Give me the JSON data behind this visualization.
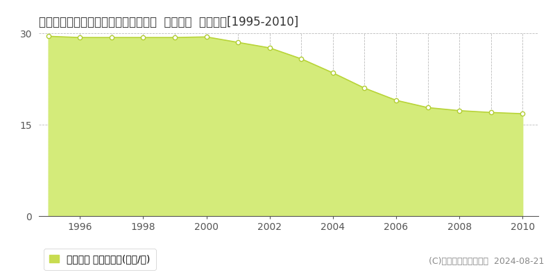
{
  "title": "宮城県仙台市若林区六郷１０４番４外  地価公示  地価推移[1995-2010]",
  "years": [
    1995,
    1996,
    1997,
    1998,
    1999,
    2000,
    2001,
    2002,
    2003,
    2004,
    2005,
    2006,
    2007,
    2008,
    2009,
    2010
  ],
  "values": [
    29.5,
    29.3,
    29.3,
    29.3,
    29.3,
    29.4,
    28.5,
    27.6,
    25.8,
    23.5,
    21.0,
    19.0,
    17.8,
    17.3,
    17.0,
    16.8
  ],
  "fill_color": "#d4eb7a",
  "line_color": "#b8d438",
  "marker_color": "#ffffff",
  "marker_edge_color": "#b0cc30",
  "bg_color": "#ffffff",
  "grid_color": "#bbbbbb",
  "ylim": [
    0,
    30
  ],
  "yticks": [
    0,
    15,
    30
  ],
  "xticks": [
    1996,
    1998,
    2000,
    2002,
    2004,
    2006,
    2008,
    2010
  ],
  "legend_label": "地価公示 平均坪単価(万円/坪)",
  "legend_square_color": "#c8dc50",
  "copyright_text": "(C)土地価格ドットコム  2024-08-21",
  "title_fontsize": 12,
  "tick_fontsize": 10,
  "legend_fontsize": 10,
  "copyright_fontsize": 9
}
